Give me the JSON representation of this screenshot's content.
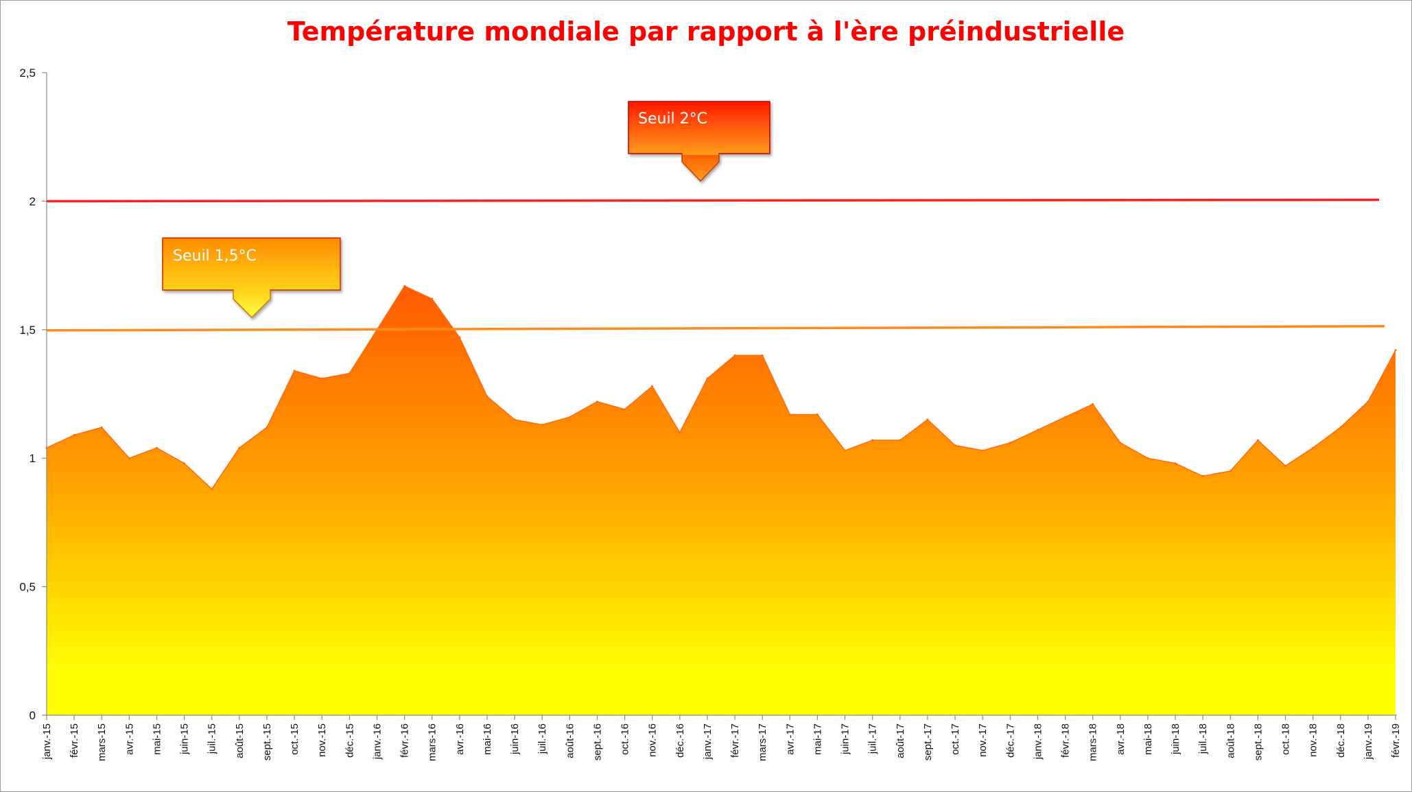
{
  "chart_data": {
    "type": "area",
    "title": "Température mondiale par rapport à l'ère préindustrielle",
    "xlabel": "",
    "ylabel": "",
    "ylim": [
      0,
      2.5
    ],
    "yticks": [
      "0",
      "0,5",
      "1",
      "1,5",
      "2",
      "2,5"
    ],
    "grid": false,
    "legend": "none",
    "categories": [
      "janv.-15",
      "févr.-15",
      "mars-15",
      "avr.-15",
      "mai-15",
      "juin-15",
      "juil.-15",
      "août-15",
      "sept.-15",
      "oct.-15",
      "nov.-15",
      "déc.-15",
      "janv.-16",
      "févr.-16",
      "mars-16",
      "avr.-16",
      "mai-16",
      "juin-16",
      "juil.-16",
      "août-16",
      "sept.-16",
      "oct.-16",
      "nov.-16",
      "déc.-16",
      "janv.-17",
      "févr.-17",
      "mars-17",
      "avr.-17",
      "mai-17",
      "juin-17",
      "juil.-17",
      "août-17",
      "sept.-17",
      "oct.-17",
      "nov.-17",
      "déc.-17",
      "janv.-18",
      "févr.-18",
      "mars-18",
      "avr.-18",
      "mai-18",
      "juin-18",
      "juil.-18",
      "août-18",
      "sept.-18",
      "oct.-18",
      "nov.-18",
      "déc.-18",
      "janv.-19",
      "févr.-19"
    ],
    "values": [
      1.04,
      1.09,
      1.12,
      1.0,
      1.04,
      0.98,
      0.88,
      1.04,
      1.12,
      1.34,
      1.31,
      1.33,
      1.5,
      1.67,
      1.62,
      1.47,
      1.24,
      1.15,
      1.13,
      1.16,
      1.22,
      1.19,
      1.28,
      1.1,
      1.31,
      1.4,
      1.4,
      1.17,
      1.17,
      1.03,
      1.07,
      1.07,
      1.15,
      1.05,
      1.03,
      1.06,
      1.11,
      1.16,
      1.21,
      1.06,
      1.0,
      0.98,
      0.93,
      0.95,
      1.07,
      0.97,
      1.04,
      1.12,
      1.22,
      1.42
    ],
    "thresholds": [
      {
        "value": 2.0,
        "color": "#ff2020",
        "label": "Seuil 2°C"
      },
      {
        "value": 1.5,
        "color": "#ff8c1a",
        "label": "Seuil 1,5°C"
      }
    ],
    "fill_colors": {
      "top": "#ff5a00",
      "middle": "#ffa000",
      "bottom": "#ffff00"
    }
  }
}
